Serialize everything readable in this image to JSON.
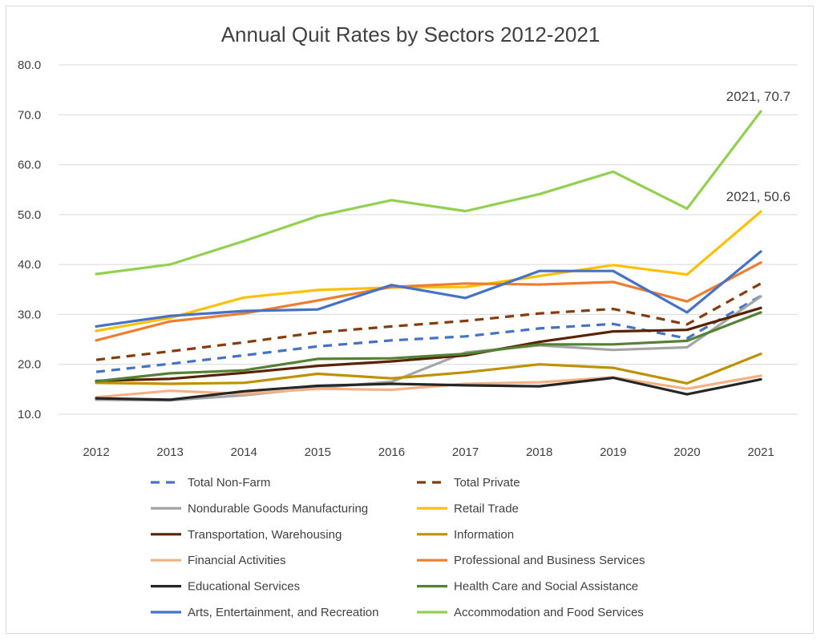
{
  "chart_data": {
    "type": "line",
    "title": "Annual Quit Rates by Sectors 2012-2021",
    "xlabel": "",
    "ylabel": "",
    "ylim": [
      10,
      80
    ],
    "yticks": [
      "10.0",
      "20.0",
      "30.0",
      "40.0",
      "50.0",
      "60.0",
      "70.0",
      "80.0"
    ],
    "categories": [
      "2012",
      "2013",
      "2014",
      "2015",
      "2016",
      "2017",
      "2018",
      "2019",
      "2020",
      "2021"
    ],
    "grid": true,
    "legend_position": "bottom",
    "series": [
      {
        "name": "Total Non-Farm",
        "color": "#4472c4",
        "dashed": true,
        "values": [
          18.5,
          20.1,
          21.8,
          23.6,
          24.8,
          25.6,
          27.2,
          28.1,
          25.2,
          33.7
        ]
      },
      {
        "name": "Total Private",
        "color": "#843c0c",
        "dashed": true,
        "values": [
          20.9,
          22.6,
          24.4,
          26.4,
          27.6,
          28.7,
          30.2,
          31.1,
          28.0,
          36.2
        ]
      },
      {
        "name": "Nondurable Goods Manufacturing",
        "color": "#a5a5a5",
        "dashed": false,
        "values": [
          12.9,
          12.8,
          13.8,
          15.3,
          16.5,
          22.4,
          23.8,
          22.9,
          23.4,
          33.6
        ]
      },
      {
        "name": "Retail Trade",
        "color": "#ffc000",
        "dashed": false,
        "values": [
          26.7,
          29.3,
          33.4,
          34.9,
          35.4,
          35.5,
          37.7,
          39.9,
          38.0,
          50.6
        ]
      },
      {
        "name": "Transportation, Warehousing",
        "color": "#5a2203",
        "dashed": false,
        "values": [
          16.7,
          17.1,
          18.3,
          19.7,
          20.6,
          21.8,
          24.5,
          26.6,
          26.9,
          31.3
        ]
      },
      {
        "name": "Information",
        "color": "#bf9000",
        "dashed": false,
        "values": [
          16.3,
          16.1,
          16.3,
          18.1,
          17.2,
          18.4,
          20.0,
          19.3,
          16.2,
          22.1
        ]
      },
      {
        "name": "Financial Activities",
        "color": "#f4b183",
        "dashed": false,
        "values": [
          13.4,
          14.7,
          14.1,
          15.1,
          14.9,
          16.1,
          16.4,
          17.4,
          15.1,
          17.7
        ]
      },
      {
        "name": "Professional and Business Services",
        "color": "#ed7d31",
        "dashed": false,
        "values": [
          24.8,
          28.6,
          30.2,
          32.8,
          35.5,
          36.2,
          36.0,
          36.5,
          32.6,
          40.4
        ]
      },
      {
        "name": "Educational Services",
        "color": "#262626",
        "dashed": false,
        "values": [
          13.2,
          12.9,
          14.6,
          15.7,
          16.1,
          15.8,
          15.6,
          17.3,
          14.0,
          17.0
        ]
      },
      {
        "name": "Health Care and Social Assistance",
        "color": "#548235",
        "dashed": false,
        "values": [
          16.6,
          18.2,
          18.8,
          21.1,
          21.2,
          22.1,
          24.0,
          24.0,
          24.7,
          30.4
        ]
      },
      {
        "name": "Arts, Entertainment, and Recreation",
        "color": "#4472c4",
        "dashed": false,
        "values": [
          27.6,
          29.7,
          30.7,
          31.0,
          35.9,
          33.3,
          38.7,
          38.7,
          30.4,
          42.6
        ]
      },
      {
        "name": "Accommodation and Food Services",
        "color": "#92d050",
        "dashed": false,
        "values": [
          38.1,
          40.0,
          44.7,
          49.7,
          52.9,
          50.7,
          54.1,
          58.6,
          51.2,
          70.7
        ]
      }
    ],
    "annotations": [
      {
        "text": "2021, 70.7",
        "series": "Accommodation and Food Services",
        "category": "2021",
        "value": 70.7
      },
      {
        "text": "2021, 50.6",
        "series": "Retail Trade",
        "category": "2021",
        "value": 50.6
      }
    ]
  }
}
